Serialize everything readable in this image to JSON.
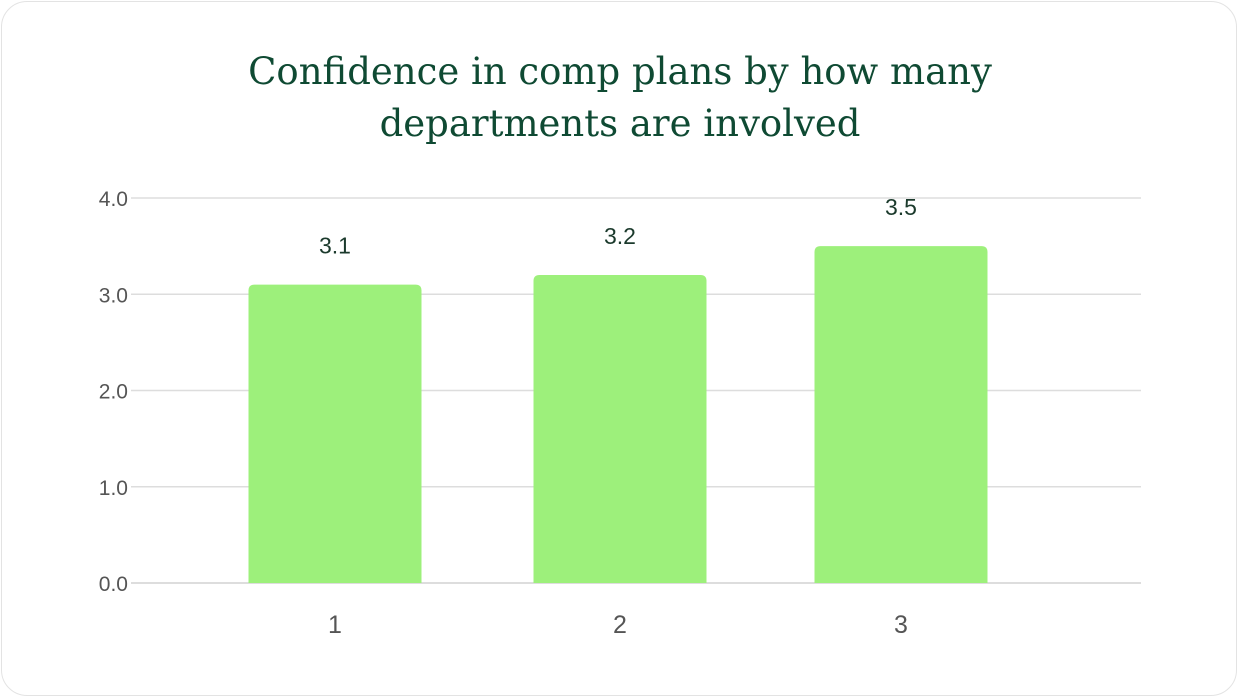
{
  "chart_data": {
    "type": "bar",
    "title_lines": [
      "Confidence in comp plans by how many",
      "departments are involved"
    ],
    "categories": [
      "1",
      "2",
      "3"
    ],
    "values": [
      3.1,
      3.2,
      3.5
    ],
    "value_labels": [
      "3.1",
      "3.2",
      "3.5"
    ],
    "yticks": [
      "0.0",
      "1.0",
      "2.0",
      "3.0",
      "4.0"
    ],
    "ylim": [
      0,
      4
    ],
    "grid": true,
    "legend": "none",
    "colors": {
      "bar": "#9df07b",
      "title": "#0f4a33",
      "grid": "#dddddd"
    }
  }
}
